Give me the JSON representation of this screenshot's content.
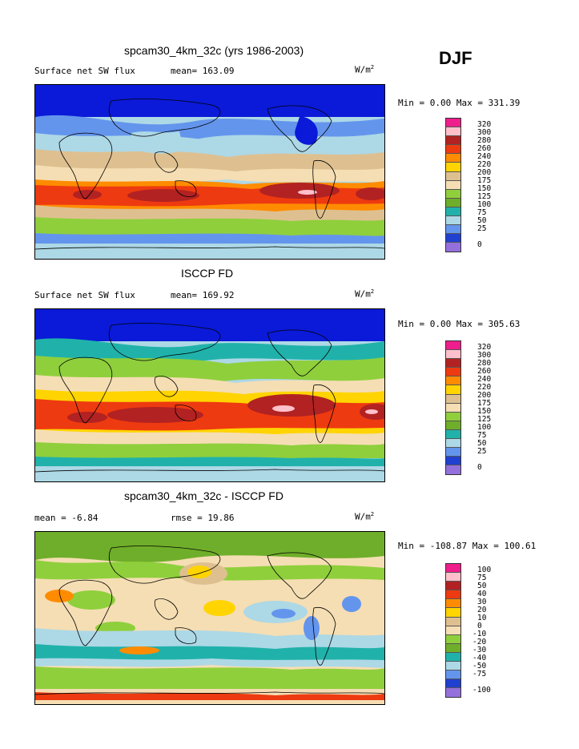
{
  "season": "DJF",
  "panels": [
    {
      "title": "spcam30_4km_32c (yrs 1986-2003)",
      "left_label": "Surface net SW flux",
      "mid_label": "mean= 163.09",
      "units": "W/m",
      "units_sup": "2",
      "minmax": "Min =   0.00 Max = 331.39",
      "levels": [
        "320",
        "300",
        "280",
        "260",
        "240",
        "220",
        "200",
        "175",
        "150",
        "125",
        "100",
        "75",
        "50",
        "25",
        "0"
      ]
    },
    {
      "title": "ISCCP FD",
      "left_label": "Surface net SW flux",
      "mid_label": "mean= 169.92",
      "units": "W/m",
      "units_sup": "2",
      "minmax": "Min =   0.00 Max = 305.63",
      "levels": [
        "320",
        "300",
        "280",
        "260",
        "240",
        "220",
        "200",
        "175",
        "150",
        "125",
        "100",
        "75",
        "50",
        "25",
        "0"
      ]
    },
    {
      "title": "spcam30_4km_32c - ISCCP FD",
      "left_label": "mean =  -6.84",
      "mid_label": "rmse =  19.86",
      "units": "W/m",
      "units_sup": "2",
      "minmax": "Min = -108.87 Max = 100.61",
      "levels": [
        "100",
        "75",
        "50",
        "40",
        "30",
        "20",
        "10",
        "0",
        "-10",
        "-20",
        "-30",
        "-40",
        "-50",
        "-75",
        "-100"
      ]
    }
  ],
  "colors": {
    "abs_scale": [
      "#ee1e8c",
      "#ffc0cb",
      "#b22222",
      "#ee3a10",
      "#ff8c00",
      "#ffd400",
      "#dec090",
      "#f5deb3",
      "#8fcf3c",
      "#6fae2a",
      "#20b2aa",
      "#add8e6",
      "#6495ed",
      "#2040d0",
      "#9370db"
    ],
    "diff_scale": [
      "#ee1e8c",
      "#ffc0cb",
      "#b22222",
      "#ee3a10",
      "#ff8c00",
      "#ffd400",
      "#dec090",
      "#f5deb3",
      "#8fcf3c",
      "#6fae2a",
      "#20b2aa",
      "#add8e6",
      "#6495ed",
      "#2040d0",
      "#9370db"
    ],
    "deep_blue": "#0a1ad8"
  },
  "chart_data": [
    {
      "type": "heatmap",
      "title": "spcam30_4km_32c (yrs 1986-2003)",
      "variable": "Surface net SW flux",
      "mean": 163.09,
      "min": 0.0,
      "max": 331.39,
      "units": "W/m^2",
      "contour_levels": [
        0,
        25,
        50,
        75,
        100,
        125,
        150,
        175,
        200,
        220,
        240,
        260,
        280,
        300,
        320
      ]
    },
    {
      "type": "heatmap",
      "title": "ISCCP FD",
      "variable": "Surface net SW flux",
      "mean": 169.92,
      "min": 0.0,
      "max": 305.63,
      "units": "W/m^2",
      "contour_levels": [
        0,
        25,
        50,
        75,
        100,
        125,
        150,
        175,
        200,
        220,
        240,
        260,
        280,
        300,
        320
      ]
    },
    {
      "type": "heatmap",
      "title": "spcam30_4km_32c - ISCCP FD",
      "mean": -6.84,
      "rmse": 19.86,
      "min": -108.87,
      "max": 100.61,
      "units": "W/m^2",
      "contour_levels": [
        -100,
        -75,
        -50,
        -40,
        -30,
        -20,
        -10,
        0,
        10,
        20,
        30,
        40,
        50,
        75,
        100
      ]
    }
  ]
}
